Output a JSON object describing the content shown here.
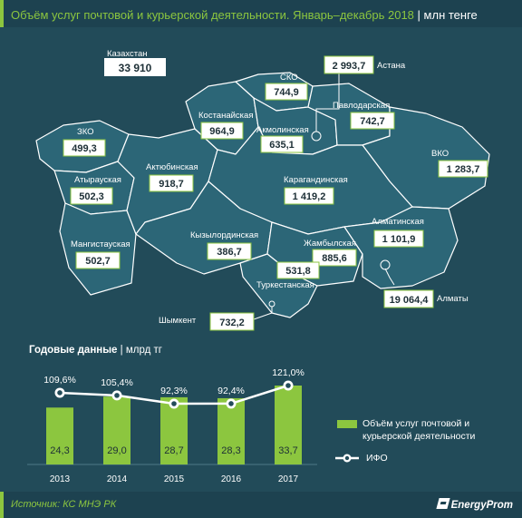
{
  "title": {
    "main": "Объём услуг почтовой и курьерской деятельности. Январь–декабрь 2018",
    "unit": "млн тенге"
  },
  "kazakhstan": {
    "label": "Казахстан",
    "value": "33 910"
  },
  "regions": [
    {
      "name": "ЗКО",
      "value": "499,3"
    },
    {
      "name": "Атырауская",
      "value": "502,3"
    },
    {
      "name": "Мангистауская",
      "value": "502,7"
    },
    {
      "name": "Актюбинская",
      "value": "918,7"
    },
    {
      "name": "Костанайская",
      "value": "964,9"
    },
    {
      "name": "СКО",
      "value": "744,9"
    },
    {
      "name": "Акмолинская",
      "value": "635,1"
    },
    {
      "name": "Астана",
      "value": "2 993,7"
    },
    {
      "name": "Павлодарская",
      "value": "742,7"
    },
    {
      "name": "ВКО",
      "value": "1 283,7"
    },
    {
      "name": "Карагандинская",
      "value": "1 419,2"
    },
    {
      "name": "Кызылординская",
      "value": "386,7"
    },
    {
      "name": "Жамбылская",
      "value": "885,6"
    },
    {
      "name": "Алматинская",
      "value": "1 101,9"
    },
    {
      "name": "Туркестанская",
      "value": "531,8"
    },
    {
      "name": "Шымкент",
      "value": "732,2"
    },
    {
      "name": "Алматы",
      "value": "19 064,4"
    }
  ],
  "annual": {
    "title": "Годовые данные",
    "unit": "млрд тг"
  },
  "legend": {
    "bars": "Объём услуг почтовой и курьерской деятельности",
    "line": "ИФО"
  },
  "colors": {
    "background": "#224b59",
    "accent": "#8cc63f",
    "bar": "#8cc63f",
    "line": "#ffffff",
    "map_fill": "#2c6677",
    "map_stroke": "#ffffff"
  },
  "chart_data": {
    "type": "bar",
    "categories": [
      "2013",
      "2014",
      "2015",
      "2016",
      "2017"
    ],
    "series": [
      {
        "name": "Объём услуг почтовой и курьерской деятельности",
        "type": "bar",
        "values": [
          24.3,
          29.0,
          28.7,
          28.3,
          33.7
        ],
        "labels": [
          "24,3",
          "29,0",
          "28,7",
          "28,3",
          "33,7"
        ]
      },
      {
        "name": "ИФО",
        "type": "line",
        "values": [
          109.6,
          105.4,
          92.3,
          92.4,
          121.0
        ],
        "labels": [
          "109,6%",
          "105,4%",
          "92,3%",
          "92,4%",
          "121,0%"
        ]
      }
    ],
    "title": "Годовые данные",
    "ylabel": "млрд тг",
    "legend": "right",
    "grid": false
  },
  "footer": {
    "source": "Источник: КС МНЭ РК",
    "brand": "EnergyProm"
  }
}
